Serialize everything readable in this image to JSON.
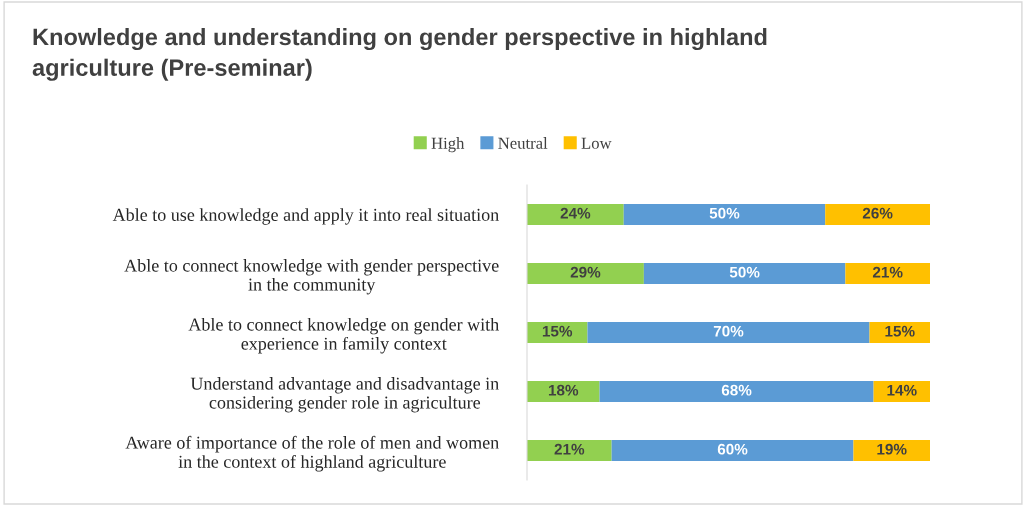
{
  "chart_data": {
    "type": "bar",
    "orientation": "horizontal",
    "stacked": true,
    "title": "Knowledge and understanding on gender perspective in highland\nagriculture (Pre-seminar)",
    "categories": [
      "Able to use knowledge and apply it into real situation",
      "Able to connect knowledge with gender perspective\nin the community",
      "Able to connect knowledge on gender with\nexperience in family context",
      "Understand advantage and disadvantage in\nconsidering gender role in agriculture",
      "Aware of importance of the role of men and women\nin the context of highland agriculture"
    ],
    "series": [
      {
        "name": "High",
        "color": "#92d050",
        "values": [
          24,
          29,
          15,
          18,
          21
        ],
        "value_labels": [
          "24%",
          "29%",
          "15%",
          "18%",
          "21%"
        ]
      },
      {
        "name": "Neutral",
        "color": "#5b9bd5",
        "values": [
          50,
          50,
          70,
          68,
          60
        ],
        "value_labels": [
          "50%",
          "50%",
          "70%",
          "68%",
          "60%"
        ]
      },
      {
        "name": "Low",
        "color": "#ffc000",
        "values": [
          26,
          21,
          15,
          14,
          19
        ],
        "value_labels": [
          "26%",
          "21%",
          "15%",
          "14%",
          "19%"
        ]
      }
    ],
    "xlim": [
      0,
      100
    ],
    "tick_labels": "y",
    "grid": false,
    "legend": "top"
  }
}
